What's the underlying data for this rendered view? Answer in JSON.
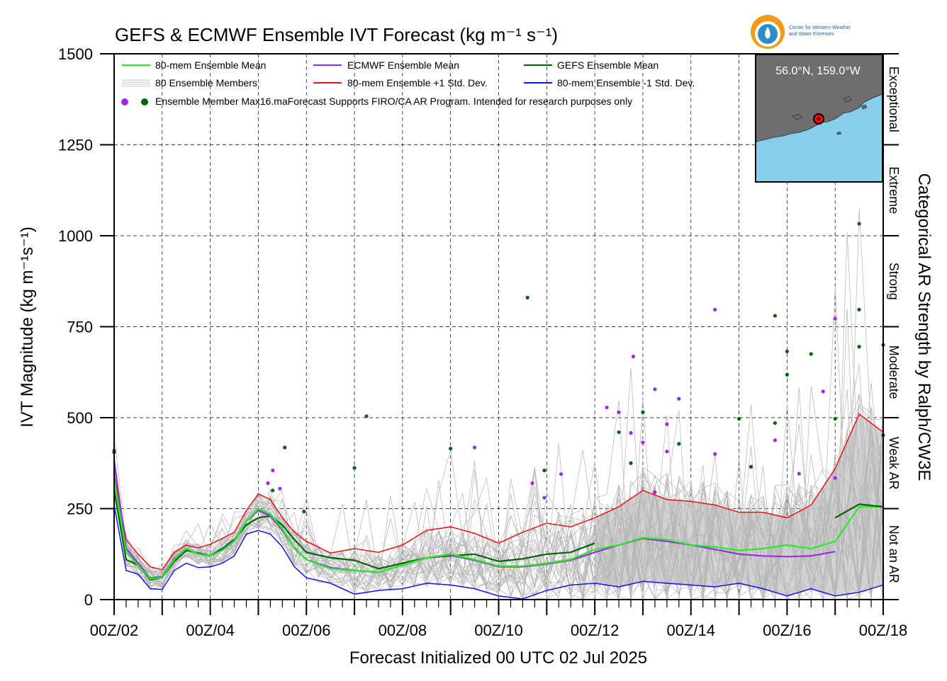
{
  "title": "GEFS & ECMWF Ensemble IVT Forecast (kg m⁻¹ s⁻¹)",
  "logo": {
    "name": "Center for Western Weather and Water Extremes",
    "line1": "Center for Western Weather",
    "line2": "and Water Extremes"
  },
  "inset": {
    "location_label": "56.0°N, 159.0°W"
  },
  "colors": {
    "mean": "#22ee22",
    "ecmwf": "#9a2be2",
    "gefs": "#006400",
    "plus_sd": "#ee1111",
    "minus_sd": "#1111ee",
    "members": "#b4b4b4",
    "spread_fill": "#d3d3d3",
    "inset_water": "#87ceeb",
    "inset_land": "#6e6e6e"
  },
  "chart_data": {
    "type": "line",
    "xlabel": "Forecast Initialized 00 UTC 02 Jul 2025",
    "ylabel": "IVT Magnitude (kg m⁻¹s⁻¹)",
    "ylim": [
      0,
      1500
    ],
    "xlim_days": [
      2,
      18
    ],
    "yticks": [
      "0",
      "250",
      "500",
      "750",
      "1000",
      "1250",
      "1500"
    ],
    "xticks": [
      "00Z/02",
      "00Z/04",
      "00Z/06",
      "00Z/08",
      "00Z/10",
      "00Z/12",
      "00Z/14",
      "00Z/16",
      "00Z/18"
    ],
    "grid": true,
    "right_axis": {
      "label": "Categorical AR Strength by Ralph/CW3E",
      "categories": [
        {
          "name": "Not an AR",
          "range": [
            0,
            250
          ]
        },
        {
          "name": "Weak AR",
          "range": [
            250,
            500
          ]
        },
        {
          "name": "Moderate",
          "range": [
            500,
            750
          ]
        },
        {
          "name": "Strong",
          "range": [
            750,
            1000
          ]
        },
        {
          "name": "Extreme",
          "range": [
            1000,
            1250
          ]
        },
        {
          "name": "Exceptional",
          "range": [
            1250,
            1500
          ]
        }
      ]
    },
    "legend": {
      "placement": "top-left",
      "entries": [
        "80-mem Ensemble Mean",
        "ECMWF Ensemble Mean",
        "GEFS Ensemble Mean",
        "80 Ensemble Members",
        "80-mem Ensemble +1 Std. Dev.",
        "80-mem Ensemble -1 Std. Dev.",
        "Ensemble Member Max16.maForecast Supports FIRO/CA AR Program. Intended for research purposes only"
      ]
    },
    "series": [
      {
        "name": "80-mem Ensemble Mean",
        "x": [
          2,
          2.25,
          2.5,
          2.75,
          3,
          3.25,
          3.5,
          3.75,
          4,
          4.25,
          4.5,
          4.75,
          5,
          5.25,
          5.5,
          5.75,
          6,
          6.5,
          7,
          7.5,
          8,
          8.5,
          9,
          9.5,
          10,
          10.5,
          11,
          11.5,
          12
        ],
        "y": [
          330,
          130,
          95,
          58,
          60,
          110,
          140,
          125,
          120,
          135,
          160,
          215,
          250,
          235,
          195,
          140,
          110,
          85,
          80,
          75,
          95,
          115,
          125,
          110,
          92,
          92,
          100,
          110,
          138
        ]
      },
      {
        "name": "ECMWF Ensemble Mean",
        "x": [
          2,
          2.25,
          2.5,
          2.75,
          3,
          3.25,
          3.5,
          3.75,
          4,
          4.25,
          4.5,
          4.75,
          5,
          5.25,
          5.5,
          5.75,
          6,
          6.5,
          7,
          7.5,
          8,
          8.5,
          9,
          9.5,
          10,
          10.5,
          11,
          11.5,
          12
        ],
        "y": [
          380,
          140,
          100,
          60,
          62,
          112,
          140,
          126,
          120,
          136,
          162,
          215,
          245,
          230,
          190,
          142,
          110,
          88,
          80,
          75,
          95,
          115,
          122,
          108,
          90,
          90,
          98,
          108,
          130
        ]
      },
      {
        "name": "GEFS Ensemble Mean",
        "x": [
          2,
          2.25,
          2.5,
          2.75,
          3,
          3.25,
          3.5,
          3.75,
          4,
          4.25,
          4.5,
          4.75,
          5,
          5.25,
          5.5,
          5.75,
          6,
          6.5,
          7,
          7.5,
          8,
          8.5,
          9,
          9.5,
          10,
          10.5,
          11,
          11.5,
          12
        ],
        "y": [
          300,
          110,
          95,
          55,
          60,
          105,
          135,
          128,
          120,
          140,
          165,
          205,
          225,
          230,
          205,
          165,
          130,
          115,
          108,
          85,
          100,
          115,
          120,
          125,
          105,
          112,
          125,
          130,
          155
        ]
      },
      {
        "name": "80-mem Ensemble +1 Std. Dev.",
        "x": [
          2,
          2.25,
          2.5,
          2.75,
          3,
          3.25,
          3.5,
          3.75,
          4,
          4.25,
          4.5,
          4.75,
          5,
          5.25,
          5.5,
          5.75,
          6,
          6.5,
          7,
          7.5,
          8,
          8.5,
          9,
          9.5,
          10,
          10.5,
          11,
          11.5,
          12,
          12.5,
          13,
          13.5,
          14,
          14.5,
          15,
          15.5,
          16,
          16.5,
          17,
          17.5,
          18
        ],
        "y": [
          340,
          165,
          125,
          90,
          82,
          130,
          150,
          142,
          152,
          168,
          185,
          245,
          290,
          275,
          225,
          185,
          160,
          128,
          140,
          130,
          150,
          190,
          200,
          182,
          155,
          185,
          210,
          200,
          225,
          255,
          300,
          275,
          270,
          260,
          240,
          240,
          225,
          260,
          360,
          510,
          460
        ]
      },
      {
        "name": "80-mem Ensemble -1 Std. Dev.",
        "x": [
          2,
          2.25,
          2.5,
          2.75,
          3,
          3.25,
          3.5,
          3.75,
          4,
          4.25,
          4.5,
          4.75,
          5,
          5.25,
          5.5,
          5.75,
          6,
          6.5,
          7,
          7.5,
          8,
          8.5,
          9,
          9.5,
          10,
          10.5,
          11,
          11.5,
          12,
          12.5,
          13,
          13.5,
          14,
          14.5,
          15,
          15.5,
          16,
          16.5,
          17,
          17.5,
          18
        ],
        "y": [
          260,
          80,
          70,
          30,
          28,
          80,
          100,
          88,
          90,
          100,
          120,
          180,
          190,
          180,
          145,
          90,
          60,
          45,
          15,
          25,
          30,
          45,
          40,
          30,
          10,
          2,
          25,
          40,
          45,
          35,
          50,
          45,
          40,
          35,
          45,
          30,
          10,
          30,
          10,
          20,
          40
        ]
      },
      {
        "name": "Ensemble spread (12Z/11–00Z/18)",
        "x": [
          12,
          12.5,
          13,
          13.5,
          14,
          14.5,
          15,
          15.5,
          16,
          16.5,
          17,
          17.5,
          18
        ],
        "y_upper": [
          225,
          255,
          300,
          275,
          270,
          260,
          240,
          240,
          225,
          260,
          360,
          510,
          460
        ],
        "y_lower": [
          45,
          35,
          50,
          45,
          40,
          35,
          45,
          30,
          10,
          30,
          10,
          20,
          40
        ]
      },
      {
        "name": "Ensemble Mean (later)",
        "x": [
          12,
          12.5,
          13,
          13.5,
          14,
          14.5,
          15,
          15.5,
          16,
          16.5,
          17,
          17.5,
          18
        ],
        "y": [
          138,
          150,
          170,
          165,
          150,
          145,
          135,
          140,
          150,
          140,
          160,
          255,
          255
        ]
      },
      {
        "name": "ECMWF Mean (later)",
        "x": [
          12,
          12.5,
          13,
          13.5,
          14,
          14.5,
          15,
          15.5,
          16,
          16.5,
          17
        ],
        "y": [
          130,
          150,
          168,
          160,
          150,
          138,
          125,
          120,
          118,
          120,
          132
        ]
      },
      {
        "name": "GEFS Mean (later)",
        "x": [
          17,
          17.5,
          18
        ],
        "y": [
          225,
          262,
          255
        ]
      }
    ],
    "max_points": {
      "ecmwf": [
        [
          2,
          410
        ],
        [
          5.2,
          320
        ],
        [
          5.3,
          355
        ],
        [
          5.45,
          305
        ],
        [
          9.5,
          418
        ],
        [
          10.7,
          320
        ],
        [
          10.95,
          280
        ],
        [
          11.3,
          345
        ],
        [
          12.25,
          528
        ],
        [
          12.5,
          515
        ],
        [
          12.75,
          458
        ],
        [
          12.8,
          668
        ],
        [
          13.0,
          432
        ],
        [
          13.25,
          295
        ],
        [
          13.25,
          578
        ],
        [
          13.5,
          482
        ],
        [
          13.5,
          407
        ],
        [
          13.75,
          552
        ],
        [
          14.5,
          797
        ],
        [
          14.5,
          400
        ],
        [
          15.75,
          438
        ],
        [
          16.25,
          346
        ],
        [
          16.75,
          572
        ],
        [
          17.0,
          772
        ],
        [
          17.0,
          334
        ]
      ],
      "gefs": [
        [
          2,
          405
        ],
        [
          5.3,
          300
        ],
        [
          5.55,
          418
        ],
        [
          5.95,
          242
        ],
        [
          7.0,
          362
        ],
        [
          7.25,
          504
        ],
        [
          9.0,
          415
        ],
        [
          10.6,
          830
        ],
        [
          10.95,
          355
        ],
        [
          12.5,
          460
        ],
        [
          12.75,
          375
        ],
        [
          13.0,
          515
        ],
        [
          13.75,
          428
        ],
        [
          15.0,
          497
        ],
        [
          15.25,
          365
        ],
        [
          15.75,
          780
        ],
        [
          15.75,
          485
        ],
        [
          16.0,
          682
        ],
        [
          16.0,
          618
        ],
        [
          16.5,
          675
        ],
        [
          17.0,
          497
        ],
        [
          17.5,
          1033
        ],
        [
          17.5,
          797
        ],
        [
          17.5,
          695
        ],
        [
          18.0,
          700
        ],
        [
          18.0,
          452
        ]
      ]
    }
  }
}
